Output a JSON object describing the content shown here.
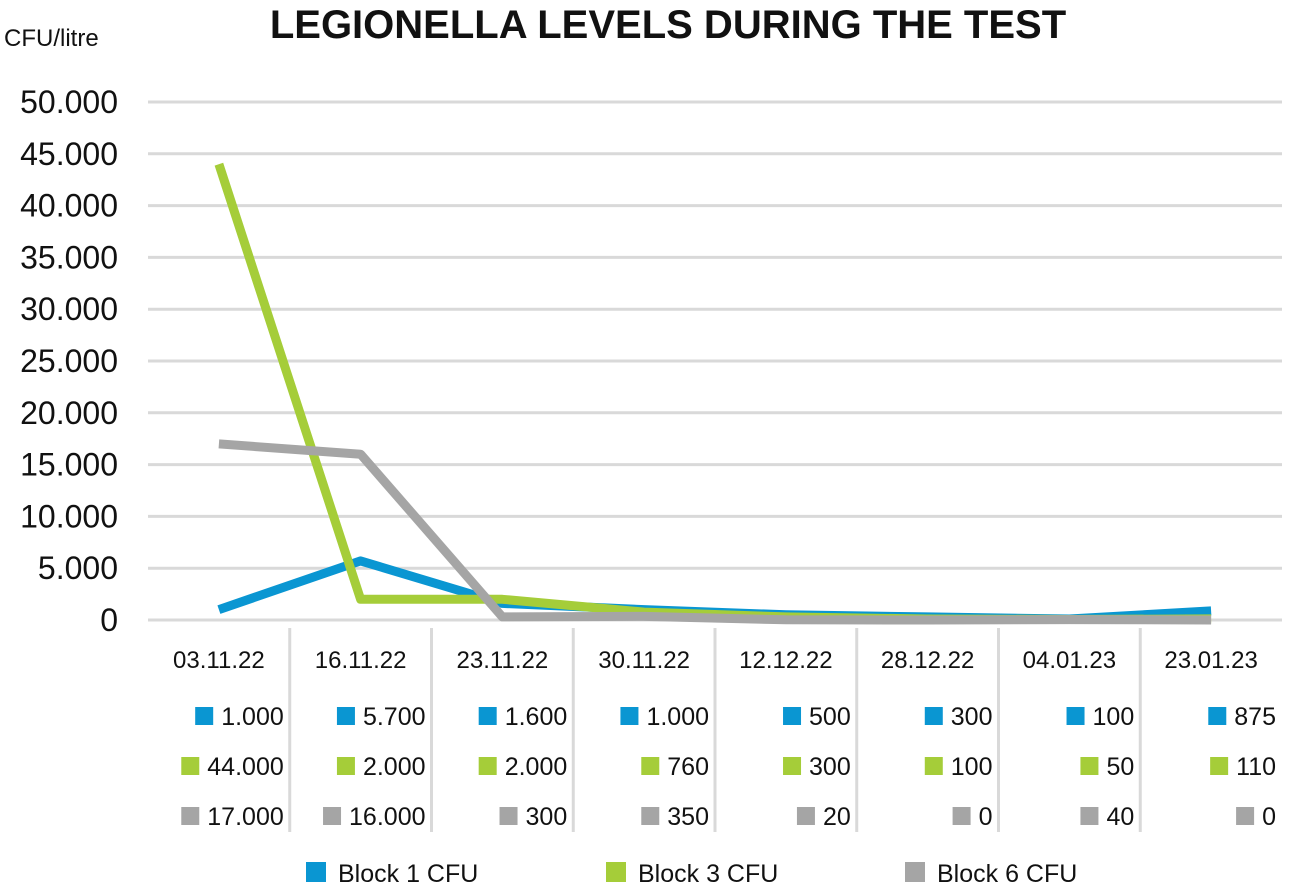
{
  "chart_data": {
    "type": "line",
    "title": "LEGIONELLA LEVELS DURING THE TEST",
    "ylabel": "CFU/litre",
    "xlabel": "",
    "ylim": [
      0,
      50000
    ],
    "yticks": [
      0,
      5000,
      10000,
      15000,
      20000,
      25000,
      30000,
      35000,
      40000,
      45000,
      50000
    ],
    "ytick_labels": [
      "0",
      "5.000",
      "10.000",
      "15.000",
      "20.000",
      "25.000",
      "30.000",
      "35.000",
      "40.000",
      "45.000",
      "50.000"
    ],
    "grid": true,
    "legend_position": "bottom",
    "categories": [
      "03.11.22",
      "16.11.22",
      "23.11.22",
      "30.11.22",
      "12.12.22",
      "28.12.22",
      "04.01.23",
      "23.01.23"
    ],
    "series": [
      {
        "name": "Block 1 CFU",
        "color": "#0a96d2",
        "values": [
          1000,
          5700,
          1600,
          1000,
          500,
          300,
          100,
          875
        ],
        "labels": [
          "1.000",
          "5.700",
          "1.600",
          "1.000",
          "500",
          "300",
          "100",
          "875"
        ]
      },
      {
        "name": "Block 3 CFU",
        "color": "#a5cd39",
        "values": [
          44000,
          2000,
          2000,
          760,
          300,
          100,
          50,
          110
        ],
        "labels": [
          "44.000",
          "2.000",
          "2.000",
          "760",
          "300",
          "100",
          "50",
          "110"
        ]
      },
      {
        "name": "Block 6 CFU",
        "color": "#a5a5a5",
        "values": [
          17000,
          16000,
          300,
          350,
          20,
          0,
          40,
          0
        ],
        "labels": [
          "17.000",
          "16.000",
          "300",
          "350",
          "20",
          "0",
          "40",
          "0"
        ]
      }
    ]
  }
}
